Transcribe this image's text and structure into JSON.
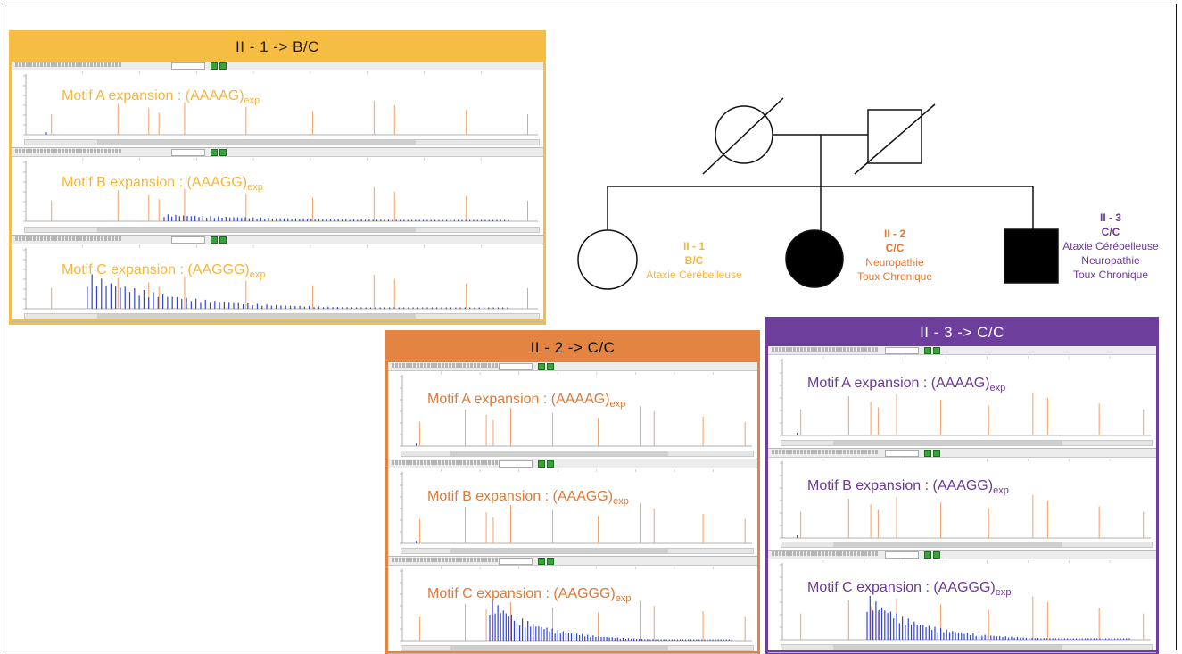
{
  "panels": [
    {
      "title": "II - 1  -> B/C",
      "theme": "#f6bd45",
      "subplots": [
        {
          "label": "Motif A expansion : (AAAAG)",
          "sub": "exp",
          "blue_expansion": "none"
        },
        {
          "label": "Motif B expansion : (AAAGG)",
          "sub": "exp",
          "blue_expansion": "low"
        },
        {
          "label": "Motif C expansion : (AAGGG)",
          "sub": "exp",
          "blue_expansion": "high"
        }
      ]
    },
    {
      "title": "II - 2  -> C/C",
      "theme": "#e38443",
      "subplots": [
        {
          "label": "Motif A expansion : (AAAAG)",
          "sub": "exp",
          "blue_expansion": "none"
        },
        {
          "label": "Motif B expansion : (AAAGG)",
          "sub": "exp",
          "blue_expansion": "none"
        },
        {
          "label": "Motif C expansion : (AAGGG)",
          "sub": "exp",
          "blue_expansion": "high"
        }
      ]
    },
    {
      "title": "II - 3  -> C/C",
      "theme": "#6d3e9b",
      "subplots": [
        {
          "label": "Motif A expansion : (AAAAG)",
          "sub": "exp",
          "blue_expansion": "none"
        },
        {
          "label": "Motif B expansion : (AAAGG)",
          "sub": "exp",
          "blue_expansion": "none"
        },
        {
          "label": "Motif C expansion : (AAGGG)",
          "sub": "exp",
          "blue_expansion": "high"
        }
      ]
    }
  ],
  "pedigree": {
    "generation1": [
      {
        "sex": "female",
        "deceased": true,
        "affected": false
      },
      {
        "sex": "male",
        "deceased": true,
        "affected": false
      }
    ],
    "children": [
      {
        "id": "II - 1",
        "genotype": "B/C",
        "phenotypes": [
          "Ataxie Cérébelleuse"
        ],
        "sex": "female",
        "affected": false,
        "color": "#f5b63e"
      },
      {
        "id": "II - 2",
        "genotype": "C/C",
        "phenotypes": [
          "Neuropathie",
          "Toux Chronique"
        ],
        "sex": "female",
        "affected": true,
        "color": "#e07836"
      },
      {
        "id": "II - 3",
        "genotype": "C/C",
        "phenotypes": [
          "Ataxie Cérébelleuse",
          "Neuropathie",
          "Toux Chronique"
        ],
        "sex": "male",
        "affected": true,
        "color": "#6c3996"
      }
    ]
  },
  "colors": {
    "orange_peaks": "#f2a068",
    "blue_peaks": "#2f43d8",
    "pedigree_line": "#111111"
  }
}
